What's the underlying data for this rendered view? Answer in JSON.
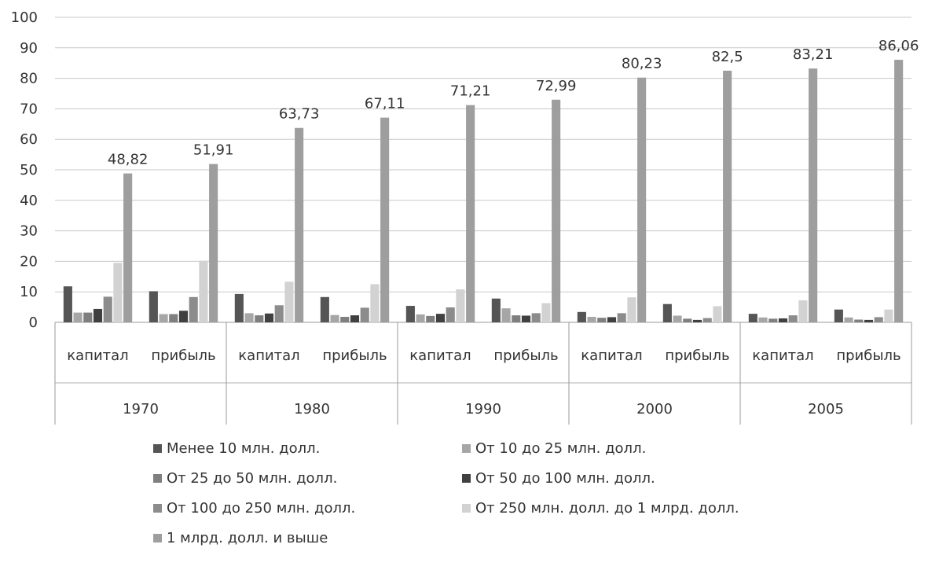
{
  "chart_data": {
    "type": "bar",
    "groups": [
      {
        "label": "1970",
        "categories": [
          "капитал",
          "прибыль"
        ]
      },
      {
        "label": "1980",
        "categories": [
          "капитал",
          "прибыль"
        ]
      },
      {
        "label": "1990",
        "categories": [
          "капитал",
          "прибыль"
        ]
      },
      {
        "label": "2000",
        "categories": [
          "капитал",
          "прибыль"
        ]
      },
      {
        "label": "2005",
        "categories": [
          "капитал",
          "прибыль"
        ]
      }
    ],
    "y_ticks": [
      "0",
      "10",
      "20",
      "30",
      "40",
      "50",
      "60",
      "70",
      "80",
      "90",
      "100"
    ],
    "ylim": [
      0,
      100
    ],
    "grid": true,
    "legend_position": "bottom",
    "series": [
      {
        "name": "Менее 10 млн. долл.",
        "color": "#555555",
        "values": [
          11.8,
          10.2,
          9.3,
          8.3,
          5.4,
          7.8,
          3.4,
          6.0,
          2.8,
          4.2
        ]
      },
      {
        "name": "От 10 до 25 млн. долл.",
        "color": "#a6a6a6",
        "values": [
          3.2,
          2.7,
          3.0,
          2.4,
          2.6,
          4.6,
          1.8,
          2.2,
          1.6,
          1.6
        ]
      },
      {
        "name": "От 25 до 50 млн. долл.",
        "color": "#7f7f7f",
        "values": [
          3.2,
          2.7,
          2.3,
          1.8,
          2.1,
          2.3,
          1.5,
          1.2,
          1.2,
          0.9
        ]
      },
      {
        "name": "От 50 до 100 млн. долл.",
        "color": "#404040",
        "values": [
          4.4,
          3.8,
          2.9,
          2.3,
          2.8,
          2.2,
          1.7,
          0.8,
          1.3,
          0.8
        ]
      },
      {
        "name": "От 100 до 250 млн. долл.",
        "color": "#8c8c8c",
        "values": [
          8.4,
          8.3,
          5.6,
          4.8,
          4.9,
          3.0,
          3.0,
          1.4,
          2.3,
          1.7
        ]
      },
      {
        "name": "От 250 млн. долл. до 1 млрд. долл.",
        "color": "#d2d2d2",
        "values": [
          19.5,
          20.2,
          13.3,
          12.5,
          10.8,
          6.3,
          8.2,
          5.3,
          7.2,
          4.2
        ]
      },
      {
        "name": "1 млрд. долл. и выше",
        "color": "#9e9e9e",
        "values": [
          48.82,
          51.91,
          63.73,
          67.11,
          71.21,
          72.99,
          80.23,
          82.5,
          83.21,
          86.06
        ],
        "data_labels": [
          "48,82",
          "51,91",
          "63,73",
          "67,11",
          "71,21",
          "72,99",
          "80,23",
          "82,5",
          "83,21",
          "86,06"
        ]
      }
    ]
  }
}
